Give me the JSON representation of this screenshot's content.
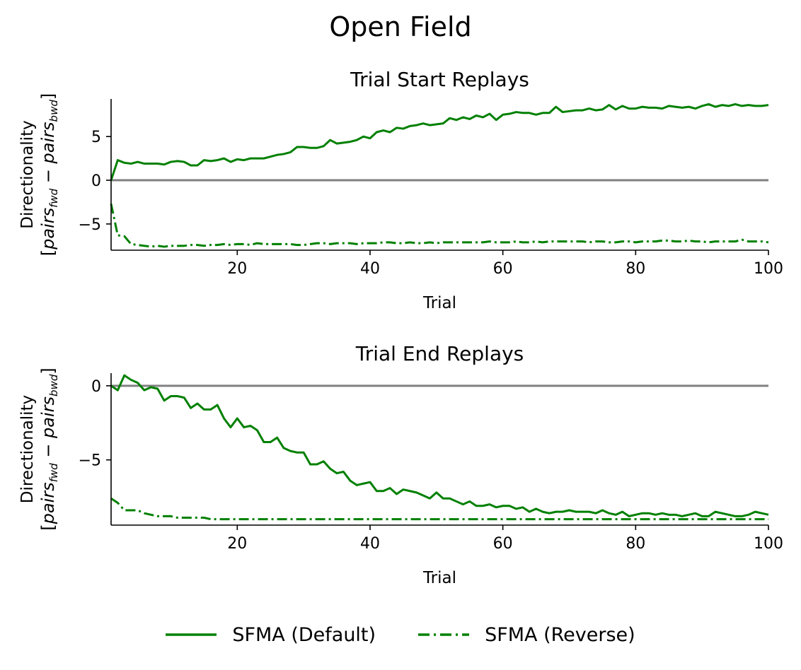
{
  "figure": {
    "title": "Open Field"
  },
  "colors": {
    "series": "#008000",
    "zero_line": "#808080",
    "axis": "#000000"
  },
  "legend": {
    "items": [
      {
        "label": "SFMA (Default)",
        "style": "solid"
      },
      {
        "label": "SFMA (Reverse)",
        "style": "dashdot"
      }
    ]
  },
  "chart_data": [
    {
      "type": "line",
      "title": "Trial Start Replays",
      "xlabel": "Trial",
      "ylabel_lines": [
        "Directionality",
        "[pairs_fwd − pairs_bwd]"
      ],
      "ylabel_plain": "Directionality",
      "ylabel_math": {
        "open": "[",
        "fwd_sym": "pairs",
        "fwd_sub": "fwd",
        "minus": "−",
        "bwd_sym": "pairs",
        "bwd_sub": "bwd",
        "close": "]"
      },
      "xlim": [
        1,
        100
      ],
      "ylim": [
        -8.0,
        9.3
      ],
      "xticks": [
        20,
        40,
        60,
        80,
        100
      ],
      "yticks": [
        -5,
        0,
        5
      ],
      "ytick_labels": [
        "−5",
        "0",
        "5"
      ],
      "hline": 0,
      "grid": false,
      "series": [
        {
          "name": "SFMA (Default)",
          "style": "solid",
          "x": [
            1,
            2,
            3,
            4,
            5,
            6,
            7,
            8,
            9,
            10,
            11,
            12,
            13,
            14,
            15,
            16,
            17,
            18,
            19,
            20,
            21,
            22,
            23,
            24,
            25,
            26,
            27,
            28,
            29,
            30,
            31,
            32,
            33,
            34,
            35,
            36,
            37,
            38,
            39,
            40,
            41,
            42,
            43,
            44,
            45,
            46,
            47,
            48,
            49,
            50,
            51,
            52,
            53,
            54,
            55,
            56,
            57,
            58,
            59,
            60,
            61,
            62,
            63,
            64,
            65,
            66,
            67,
            68,
            69,
            70,
            71,
            72,
            73,
            74,
            75,
            76,
            77,
            78,
            79,
            80,
            81,
            82,
            83,
            84,
            85,
            86,
            87,
            88,
            89,
            90,
            91,
            92,
            93,
            94,
            95,
            96,
            97,
            98,
            99,
            100
          ],
          "y": [
            0.0,
            2.3,
            2.0,
            1.9,
            2.1,
            1.9,
            1.9,
            1.9,
            1.8,
            2.1,
            2.2,
            2.1,
            1.7,
            1.7,
            2.3,
            2.2,
            2.3,
            2.5,
            2.1,
            2.4,
            2.3,
            2.5,
            2.5,
            2.5,
            2.7,
            2.9,
            3.0,
            3.2,
            3.8,
            3.8,
            3.7,
            3.7,
            3.9,
            4.6,
            4.2,
            4.3,
            4.4,
            4.6,
            5.0,
            4.8,
            5.5,
            5.7,
            5.5,
            6.0,
            5.9,
            6.2,
            6.3,
            6.5,
            6.3,
            6.4,
            6.5,
            7.1,
            6.9,
            7.2,
            7.0,
            7.4,
            7.2,
            7.6,
            6.9,
            7.5,
            7.6,
            7.8,
            7.7,
            7.7,
            7.5,
            7.7,
            7.7,
            8.4,
            7.8,
            7.9,
            8.0,
            8.0,
            8.2,
            8.0,
            8.1,
            8.6,
            8.1,
            8.5,
            8.2,
            8.2,
            8.4,
            8.3,
            8.3,
            8.2,
            8.5,
            8.4,
            8.3,
            8.4,
            8.2,
            8.5,
            8.7,
            8.4,
            8.6,
            8.5,
            8.7,
            8.5,
            8.6,
            8.5,
            8.5,
            8.6
          ]
        },
        {
          "name": "SFMA (Reverse)",
          "style": "dashdot",
          "x": [
            1,
            2,
            3,
            4,
            5,
            6,
            7,
            8,
            9,
            10,
            11,
            12,
            13,
            14,
            15,
            16,
            17,
            18,
            19,
            20,
            21,
            22,
            23,
            24,
            25,
            26,
            27,
            28,
            29,
            30,
            31,
            32,
            33,
            34,
            35,
            36,
            37,
            38,
            39,
            40,
            41,
            42,
            43,
            44,
            45,
            46,
            47,
            48,
            49,
            50,
            51,
            52,
            53,
            54,
            55,
            56,
            57,
            58,
            59,
            60,
            61,
            62,
            63,
            64,
            65,
            66,
            67,
            68,
            69,
            70,
            71,
            72,
            73,
            74,
            75,
            76,
            77,
            78,
            79,
            80,
            81,
            82,
            83,
            84,
            85,
            86,
            87,
            88,
            89,
            90,
            91,
            92,
            93,
            94,
            95,
            96,
            97,
            98,
            99,
            100
          ],
          "y": [
            -2.7,
            -6.3,
            -6.4,
            -7.3,
            -7.4,
            -7.5,
            -7.6,
            -7.5,
            -7.6,
            -7.5,
            -7.5,
            -7.5,
            -7.4,
            -7.4,
            -7.5,
            -7.4,
            -7.4,
            -7.3,
            -7.4,
            -7.3,
            -7.3,
            -7.4,
            -7.2,
            -7.3,
            -7.3,
            -7.3,
            -7.3,
            -7.3,
            -7.4,
            -7.4,
            -7.3,
            -7.2,
            -7.2,
            -7.3,
            -7.2,
            -7.2,
            -7.2,
            -7.3,
            -7.2,
            -7.2,
            -7.2,
            -7.1,
            -7.1,
            -7.2,
            -7.2,
            -7.1,
            -7.2,
            -7.2,
            -7.1,
            -7.2,
            -7.1,
            -7.1,
            -7.1,
            -7.1,
            -7.1,
            -7.1,
            -7.1,
            -7.0,
            -7.1,
            -7.1,
            -7.1,
            -7.0,
            -7.1,
            -7.1,
            -7.0,
            -7.1,
            -7.0,
            -7.0,
            -7.0,
            -7.0,
            -7.0,
            -7.0,
            -7.1,
            -7.0,
            -7.0,
            -7.1,
            -7.1,
            -7.0,
            -7.0,
            -7.1,
            -7.0,
            -7.0,
            -7.0,
            -6.9,
            -6.9,
            -7.0,
            -7.0,
            -6.9,
            -7.0,
            -7.0,
            -7.1,
            -7.0,
            -7.0,
            -7.0,
            -7.0,
            -6.8,
            -7.0,
            -7.0,
            -7.0,
            -7.1
          ]
        }
      ]
    },
    {
      "type": "line",
      "title": "Trial End Replays",
      "xlabel": "Trial",
      "ylabel_plain": "Directionality",
      "ylabel_math": {
        "open": "[",
        "fwd_sym": "pairs",
        "fwd_sub": "fwd",
        "minus": "−",
        "bwd_sym": "pairs",
        "bwd_sub": "bwd",
        "close": "]"
      },
      "xlim": [
        1,
        100
      ],
      "ylim": [
        -9.4,
        0.85
      ],
      "xticks": [
        20,
        40,
        60,
        80,
        100
      ],
      "yticks": [
        -5,
        0
      ],
      "ytick_labels": [
        "−5",
        "0"
      ],
      "hline": 0,
      "grid": false,
      "series": [
        {
          "name": "SFMA (Default)",
          "style": "solid",
          "x": [
            1,
            2,
            3,
            4,
            5,
            6,
            7,
            8,
            9,
            10,
            11,
            12,
            13,
            14,
            15,
            16,
            17,
            18,
            19,
            20,
            21,
            22,
            23,
            24,
            25,
            26,
            27,
            28,
            29,
            30,
            31,
            32,
            33,
            34,
            35,
            36,
            37,
            38,
            39,
            40,
            41,
            42,
            43,
            44,
            45,
            46,
            47,
            48,
            49,
            50,
            51,
            52,
            53,
            54,
            55,
            56,
            57,
            58,
            59,
            60,
            61,
            62,
            63,
            64,
            65,
            66,
            67,
            68,
            69,
            70,
            71,
            72,
            73,
            74,
            75,
            76,
            77,
            78,
            79,
            80,
            81,
            82,
            83,
            84,
            85,
            86,
            87,
            88,
            89,
            90,
            91,
            92,
            93,
            94,
            95,
            96,
            97,
            98,
            99,
            100
          ],
          "y": [
            0.0,
            -0.3,
            0.7,
            0.4,
            0.2,
            -0.3,
            -0.1,
            -0.2,
            -1.0,
            -0.7,
            -0.7,
            -0.8,
            -1.5,
            -1.2,
            -1.6,
            -1.6,
            -1.3,
            -2.2,
            -2.8,
            -2.2,
            -2.8,
            -2.7,
            -3.0,
            -3.8,
            -3.8,
            -3.5,
            -4.2,
            -4.4,
            -4.5,
            -4.5,
            -5.3,
            -5.3,
            -5.1,
            -5.6,
            -5.9,
            -5.8,
            -6.4,
            -6.7,
            -6.6,
            -6.5,
            -7.1,
            -7.1,
            -6.9,
            -7.3,
            -7.0,
            -7.1,
            -7.2,
            -7.4,
            -7.6,
            -7.2,
            -7.6,
            -7.6,
            -7.8,
            -8.0,
            -7.8,
            -8.1,
            -8.1,
            -8.0,
            -8.2,
            -8.1,
            -8.1,
            -8.3,
            -8.2,
            -8.5,
            -8.3,
            -8.5,
            -8.6,
            -8.5,
            -8.5,
            -8.4,
            -8.5,
            -8.5,
            -8.5,
            -8.6,
            -8.4,
            -8.6,
            -8.7,
            -8.5,
            -8.8,
            -8.7,
            -8.6,
            -8.6,
            -8.7,
            -8.6,
            -8.7,
            -8.7,
            -8.8,
            -8.7,
            -8.6,
            -8.8,
            -8.8,
            -8.5,
            -8.6,
            -8.7,
            -8.8,
            -8.8,
            -8.7,
            -8.5,
            -8.6,
            -8.7
          ]
        },
        {
          "name": "SFMA (Reverse)",
          "style": "dashdot",
          "x": [
            1,
            2,
            3,
            4,
            5,
            6,
            7,
            8,
            9,
            10,
            11,
            12,
            13,
            14,
            15,
            16,
            17,
            18,
            19,
            20,
            21,
            22,
            23,
            24,
            25,
            26,
            27,
            28,
            29,
            30,
            31,
            32,
            33,
            34,
            35,
            36,
            37,
            38,
            39,
            40,
            41,
            42,
            43,
            44,
            45,
            46,
            47,
            48,
            49,
            50,
            51,
            52,
            53,
            54,
            55,
            56,
            57,
            58,
            59,
            60,
            61,
            62,
            63,
            64,
            65,
            66,
            67,
            68,
            69,
            70,
            71,
            72,
            73,
            74,
            75,
            76,
            77,
            78,
            79,
            80,
            81,
            82,
            83,
            84,
            85,
            86,
            87,
            88,
            89,
            90,
            91,
            92,
            93,
            94,
            95,
            96,
            97,
            98,
            99,
            100
          ],
          "y": [
            -7.6,
            -7.9,
            -8.4,
            -8.4,
            -8.4,
            -8.6,
            -8.7,
            -8.8,
            -8.8,
            -8.8,
            -8.9,
            -8.9,
            -8.9,
            -8.9,
            -8.9,
            -9.0,
            -9.0,
            -9.0,
            -9.0,
            -9.0,
            -9.0,
            -9.0,
            -9.0,
            -9.0,
            -9.0,
            -9.0,
            -9.0,
            -9.0,
            -9.0,
            -9.0,
            -9.0,
            -9.0,
            -9.0,
            -9.0,
            -9.0,
            -9.0,
            -9.0,
            -9.0,
            -9.0,
            -9.0,
            -9.0,
            -9.0,
            -9.0,
            -9.0,
            -9.0,
            -9.0,
            -9.0,
            -9.0,
            -9.0,
            -9.0,
            -9.0,
            -9.0,
            -9.0,
            -9.0,
            -9.0,
            -9.0,
            -9.0,
            -9.0,
            -9.0,
            -9.0,
            -9.0,
            -9.0,
            -9.0,
            -9.0,
            -9.0,
            -9.0,
            -9.0,
            -9.0,
            -9.0,
            -9.0,
            -9.0,
            -9.0,
            -9.0,
            -9.0,
            -9.0,
            -9.0,
            -9.0,
            -9.0,
            -9.0,
            -9.0,
            -9.0,
            -9.0,
            -9.0,
            -9.0,
            -9.0,
            -9.0,
            -9.0,
            -9.0,
            -9.0,
            -9.0,
            -9.0,
            -9.0,
            -9.0,
            -9.0,
            -9.0,
            -9.0,
            -9.0,
            -9.0,
            -9.0,
            -9.0
          ]
        }
      ]
    }
  ]
}
